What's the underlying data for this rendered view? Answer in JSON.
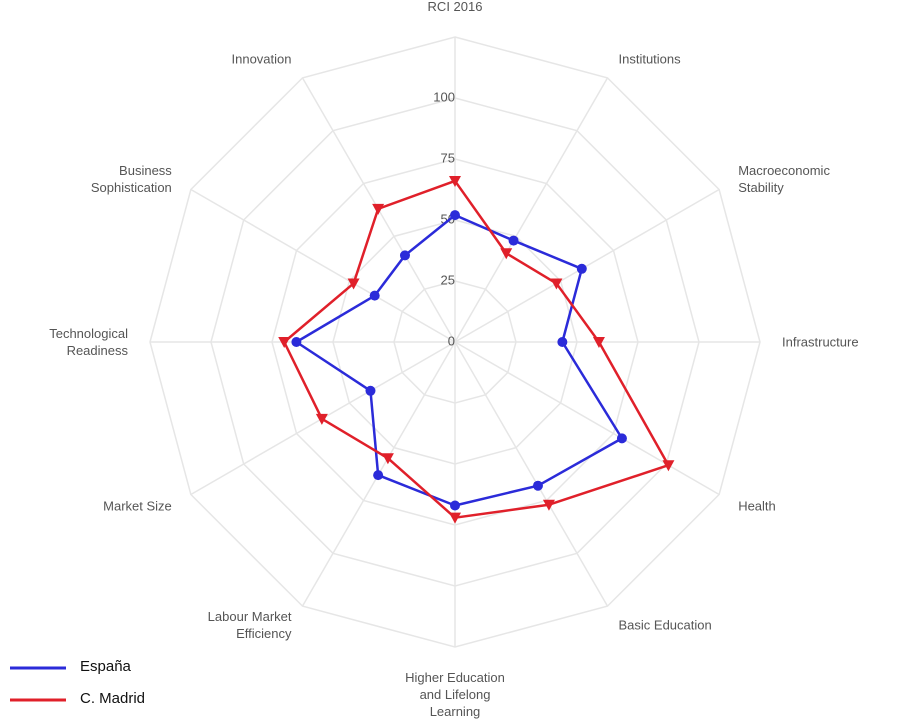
{
  "chart_data": {
    "type": "radar",
    "categories": [
      "RCI 2016",
      "Institutions",
      "Macroeconomic Stability",
      "Infrastructure",
      "Health",
      "Basic Education",
      "Higher Education and Lifelong Learning",
      "Labour Market Efficiency",
      "Market Size",
      "Technological Readiness",
      "Business Sophistication",
      "Innovation"
    ],
    "series": [
      {
        "name": "España",
        "color": "#2b2bd9",
        "marker": "circle",
        "values": [
          52,
          48,
          60,
          44,
          79,
          68,
          67,
          63,
          40,
          65,
          38,
          41
        ]
      },
      {
        "name": "C. Madrid",
        "color": "#e0202a",
        "marker": "triangle-down",
        "values": [
          66,
          42,
          48,
          59,
          101,
          77,
          72,
          55,
          63,
          70,
          48,
          63
        ]
      }
    ],
    "rlim": [
      0,
      125
    ],
    "rticks": [
      0,
      25,
      50,
      75,
      100
    ],
    "grid": true,
    "legend": "lower left"
  }
}
